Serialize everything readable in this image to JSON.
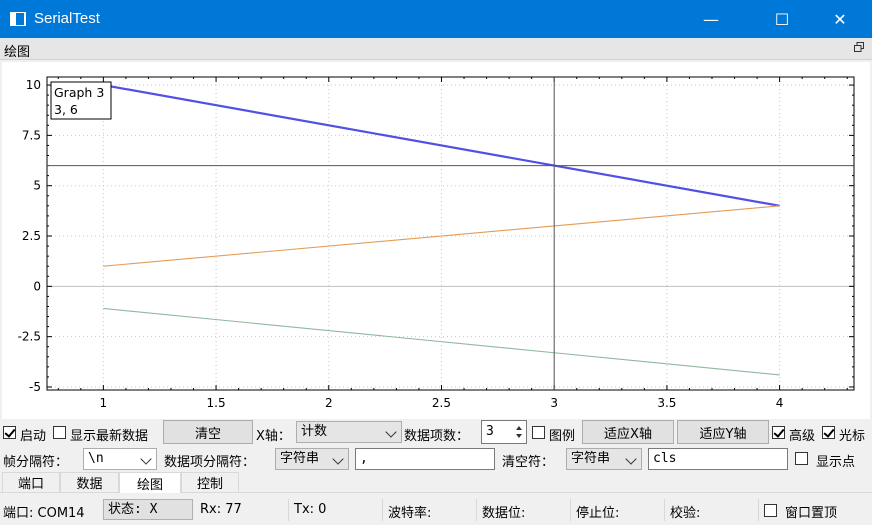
{
  "window": {
    "title": "SerialTest",
    "minimize": "—",
    "maximize": "☐",
    "close": "✕"
  },
  "dock": {
    "title": "绘图"
  },
  "chart_data": {
    "type": "line",
    "x": [
      1,
      3,
      4
    ],
    "series": [
      {
        "values": [
          10,
          6,
          4
        ],
        "color": "#5050e6"
      },
      {
        "values": [
          1,
          3,
          4
        ],
        "color": "#e69b55"
      },
      {
        "values": [
          -1.1,
          -3.3,
          -4.4
        ],
        "color": "#8fb89e"
      }
    ],
    "xlim": [
      0.75,
      4.33
    ],
    "ylim": [
      -5.15,
      10.4
    ],
    "xticks": [
      "1",
      "1.5",
      "2",
      "2.5",
      "3",
      "3.5",
      "4"
    ],
    "yticks": [
      "10",
      "7.5",
      "5",
      "2.5",
      "0",
      "-2.5",
      "-5"
    ],
    "grid": true,
    "cursor": {
      "x": 3,
      "y": 6
    },
    "tooltip": {
      "line1": "Graph 3",
      "line2": "3, 6"
    }
  },
  "controls": {
    "start": "启动",
    "show_latest": "显示最新数据",
    "clear": "清空",
    "x_axis_label": "X轴：",
    "x_axis_value": "计数",
    "item_count_label": "数据项数：",
    "item_count_value": "3",
    "legend": "图例",
    "fit_x": "适应X轴",
    "fit_y": "适应Y轴",
    "advanced": "高级",
    "cursor": "光标",
    "frame_sep_label": "帧分隔符：",
    "frame_sep_value": "\\n",
    "item_sep_label": "数据项分隔符：",
    "item_sep_type": "字符串",
    "item_sep_value": ",",
    "clear_char_label": "清空符：",
    "clear_char_type": "字符串",
    "clear_char_value": "cls",
    "show_points": "显示点"
  },
  "tabs": [
    "端口",
    "数据",
    "绘图",
    "控制"
  ],
  "status": {
    "port": "端口: COM14",
    "state": "状态: X",
    "rx": "Rx: 77",
    "tx": "Tx: 0",
    "baud": "波特率:",
    "databits": "数据位:",
    "stopbits": "停止位:",
    "parity": "校验:",
    "on_top": "窗口置顶"
  }
}
